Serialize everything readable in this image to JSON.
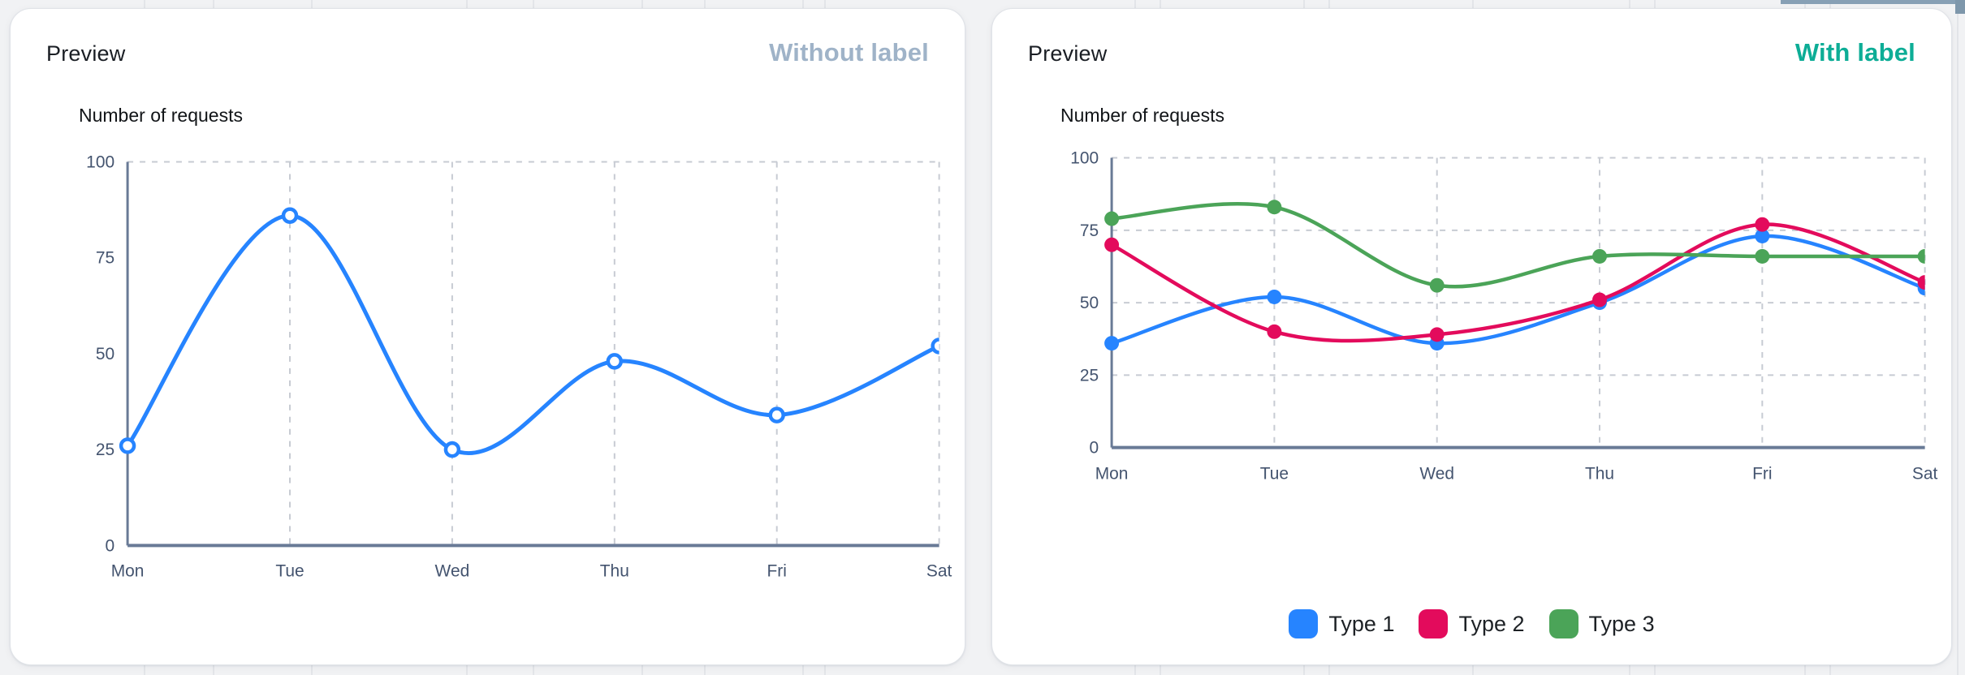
{
  "cards": [
    {
      "header": {
        "title": "Preview",
        "badge": "Without label",
        "badge_color": "#9fb3c8"
      }
    },
    {
      "header": {
        "title": "Preview",
        "badge": "With label",
        "badge_color": "#0dad96"
      }
    }
  ],
  "chart_data": [
    {
      "type": "line",
      "title": "Number of requests",
      "x": [
        "Mon",
        "Tue",
        "Wed",
        "Thu",
        "Fri",
        "Sat"
      ],
      "ylim": [
        0,
        100
      ],
      "yticks": [
        0,
        25,
        50,
        75,
        100
      ],
      "grid": {
        "vertical": true,
        "horizontal_levels": [
          100
        ]
      },
      "legend_position": "none",
      "series": [
        {
          "name": "Number of requests",
          "color": "#2684ff",
          "marker": "open",
          "values": [
            26,
            86,
            25,
            48,
            34,
            52
          ]
        }
      ]
    },
    {
      "type": "line",
      "title": "Number of requests",
      "x": [
        "Mon",
        "Tue",
        "Wed",
        "Thu",
        "Fri",
        "Sat"
      ],
      "ylim": [
        0,
        100
      ],
      "yticks": [
        0,
        25,
        50,
        75,
        100
      ],
      "grid": {
        "vertical": true,
        "horizontal_levels": [
          25,
          50,
          75,
          100
        ]
      },
      "legend_position": "bottom",
      "series": [
        {
          "name": "Type 1",
          "color": "#2684ff",
          "marker": "filled",
          "values": [
            36,
            52,
            36,
            50,
            73,
            55
          ]
        },
        {
          "name": "Type 2",
          "color": "#e30b5c",
          "marker": "filled",
          "values": [
            70,
            40,
            39,
            51,
            77,
            57
          ]
        },
        {
          "name": "Type 3",
          "color": "#4ba458",
          "marker": "filled",
          "values": [
            79,
            83,
            56,
            66,
            66,
            66
          ]
        }
      ]
    }
  ]
}
